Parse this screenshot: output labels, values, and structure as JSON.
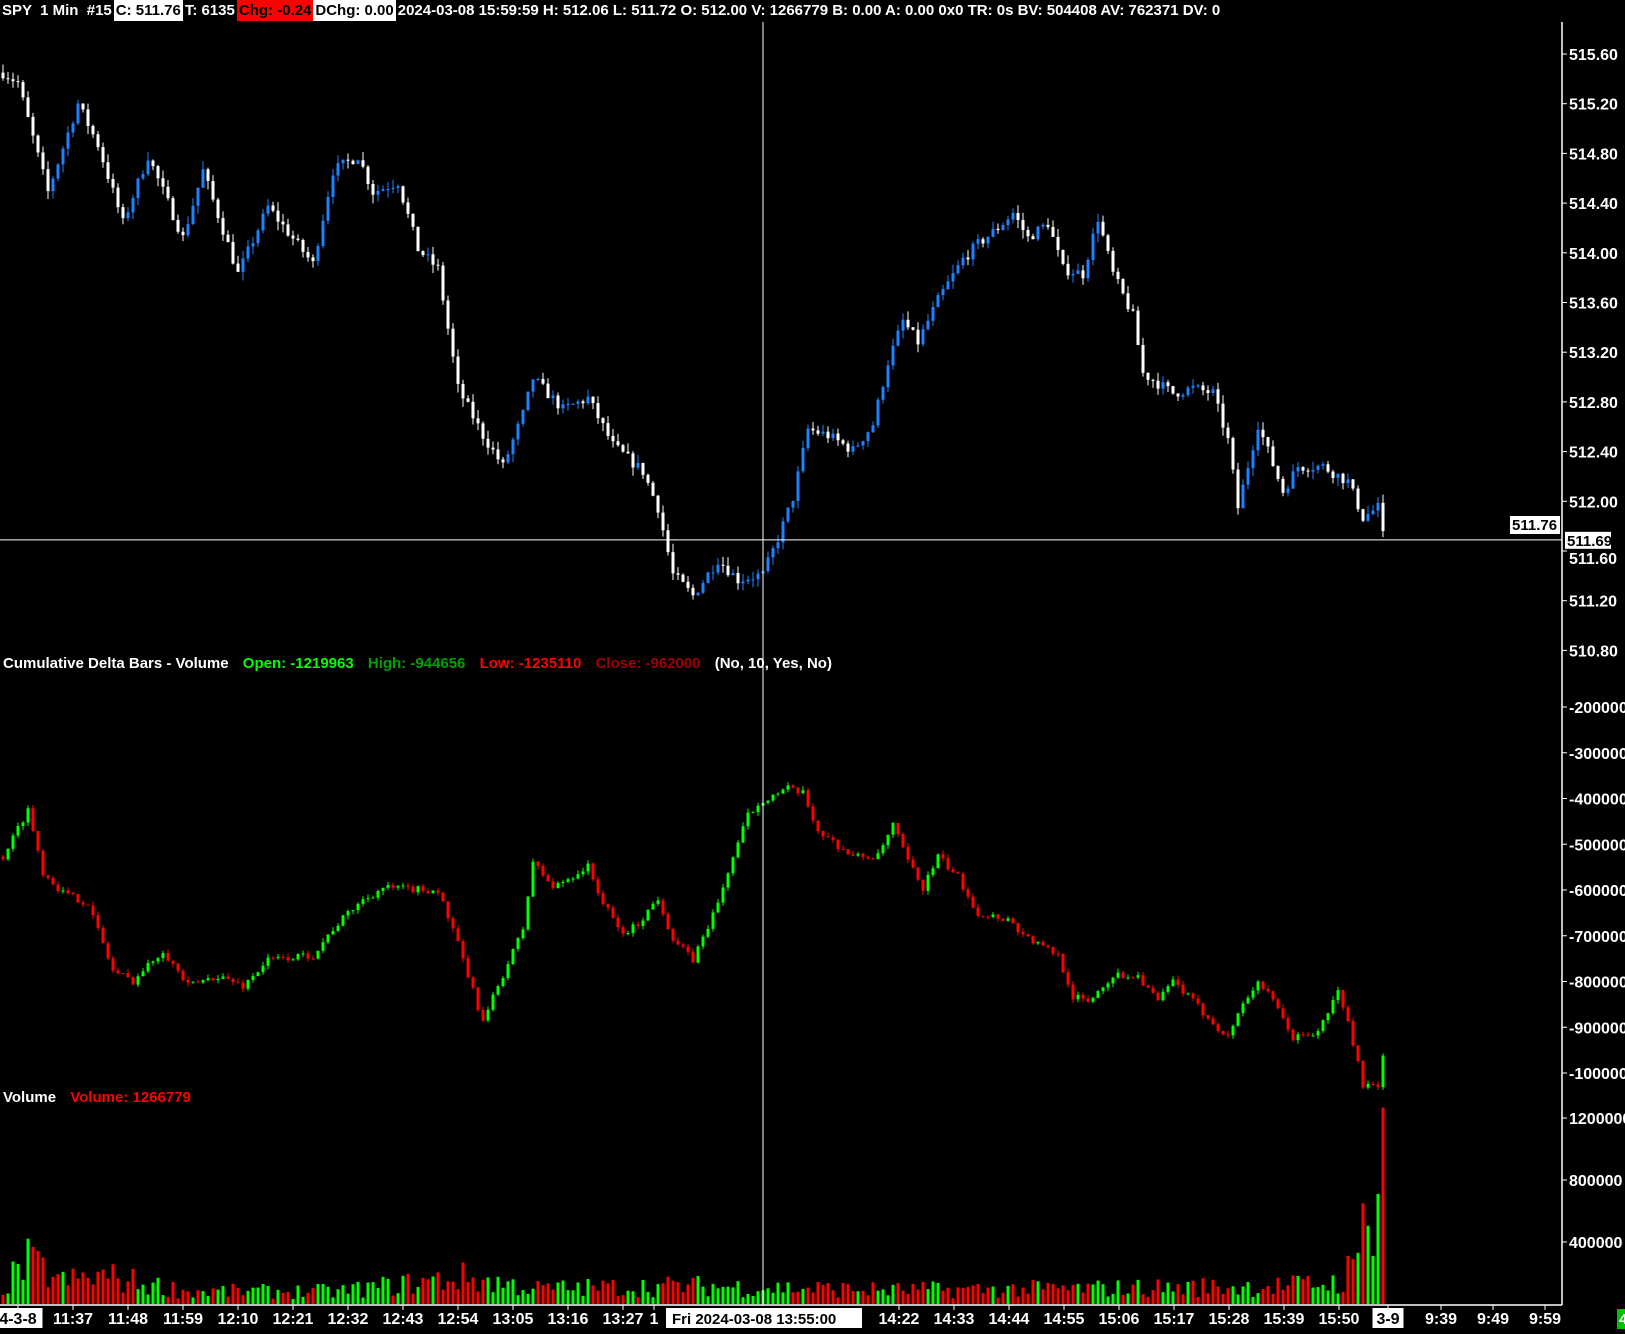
{
  "header": {
    "symbol_info": "SPY  1 Min  #15",
    "close": "C: 511.76",
    "trades": "T: 6135",
    "change": "Chg: -0.24",
    "daily_change": "DChg: 0.00",
    "details": "2024-03-08 15:59:59 H: 512.06 L: 511.72 O: 512.00 V: 1266779 B: 0.00 A: 0.00 0x0 TR: 0s BV: 504408 AV: 762371 DV: 0"
  },
  "study_delta": {
    "title": "Cumulative Delta Bars - Volume",
    "open": "Open: -1219963",
    "high": "High: -944656",
    "low": "Low: -1235110",
    "close": "Close: -962000",
    "params": "(No, 10, Yes, No)"
  },
  "study_volume": {
    "title": "Volume",
    "value": "Volume: 1266779"
  },
  "crosshair": {
    "time": "13:55",
    "price": 511.69,
    "time_label": "Fri 2024-03-08  13:55:00",
    "price_label": "511.69"
  },
  "last_price_label": "511.76",
  "x_axis": {
    "labels": [
      "4-3-8",
      "11:37",
      "11:48",
      "11:59",
      "12:10",
      "12:21",
      "12:32",
      "12:43",
      "12:54",
      "13:05",
      "13:16",
      "13:27",
      "1",
      "14:22",
      "14:33",
      "14:44",
      "14:55",
      "15:06",
      "15:17",
      "15:28",
      "15:39",
      "15:50",
      "3-9",
      "9:39",
      "9:49",
      "9:59"
    ],
    "corner_badge": "4"
  },
  "colors": {
    "background": "#000000",
    "price_up": "#1e82ff",
    "price_down": "#ffffff",
    "delta_up": "#00ff00",
    "delta_down": "#ff0000",
    "open_text": "#00ff00",
    "high_text": "#00a000",
    "low_text": "#ff0000",
    "close_text": "#a00000"
  },
  "chart_data": [
    {
      "type": "candlestick",
      "title": "SPY 1 Min",
      "ylim": [
        510.8,
        515.8
      ],
      "yticks": [
        "515.60",
        "515.20",
        "514.80",
        "514.40",
        "514.00",
        "513.60",
        "513.20",
        "512.80",
        "512.40",
        "512.00",
        "511.60",
        "511.20",
        "510.80"
      ],
      "close_path": [
        [
          "11:23",
          515.45
        ],
        [
          "11:26",
          515.37
        ],
        [
          "11:30",
          514.78
        ],
        [
          "11:32",
          514.49
        ],
        [
          "11:38",
          515.2
        ],
        [
          "11:42",
          514.87
        ],
        [
          "11:47",
          514.24
        ],
        [
          "11:52",
          514.78
        ],
        [
          "11:59",
          514.12
        ],
        [
          "12:03",
          514.66
        ],
        [
          "12:10",
          513.83
        ],
        [
          "12:16",
          514.37
        ],
        [
          "12:25",
          513.91
        ],
        [
          "12:29",
          514.66
        ],
        [
          "12:34",
          514.78
        ],
        [
          "12:37",
          514.49
        ],
        [
          "12:42",
          514.57
        ],
        [
          "12:46",
          514.03
        ],
        [
          "12:50",
          513.87
        ],
        [
          "12:54",
          512.91
        ],
        [
          "12:59",
          512.53
        ],
        [
          "13:03",
          512.28
        ],
        [
          "13:07",
          512.7
        ],
        [
          "13:09",
          512.99
        ],
        [
          "13:15",
          512.74
        ],
        [
          "13:20",
          512.83
        ],
        [
          "13:25",
          512.45
        ],
        [
          "13:31",
          512.24
        ],
        [
          "13:34",
          511.95
        ],
        [
          "13:37",
          511.41
        ],
        [
          "13:41",
          511.24
        ],
        [
          "13:46",
          511.53
        ],
        [
          "13:50",
          511.37
        ],
        [
          "13:55",
          511.41
        ],
        [
          "13:58",
          511.7
        ],
        [
          "14:01",
          512.03
        ],
        [
          "14:04",
          512.58
        ],
        [
          "14:08",
          512.53
        ],
        [
          "14:13",
          512.41
        ],
        [
          "14:17",
          512.62
        ],
        [
          "14:20",
          513.12
        ],
        [
          "14:23",
          513.45
        ],
        [
          "14:26",
          513.28
        ],
        [
          "14:30",
          513.62
        ],
        [
          "14:35",
          513.95
        ],
        [
          "14:38",
          514.07
        ],
        [
          "14:42",
          514.2
        ],
        [
          "14:45",
          514.32
        ],
        [
          "14:48",
          514.12
        ],
        [
          "14:52",
          514.24
        ],
        [
          "14:55",
          513.87
        ],
        [
          "14:59",
          513.83
        ],
        [
          "15:02",
          514.28
        ],
        [
          "15:05",
          513.83
        ],
        [
          "15:09",
          513.49
        ],
        [
          "15:11",
          513.03
        ],
        [
          "15:17",
          512.87
        ],
        [
          "15:21",
          512.91
        ],
        [
          "15:25",
          512.87
        ],
        [
          "15:28",
          512.49
        ],
        [
          "15:30",
          511.95
        ],
        [
          "15:34",
          512.62
        ],
        [
          "15:39",
          512.08
        ],
        [
          "15:42",
          512.28
        ],
        [
          "15:47",
          512.28
        ],
        [
          "15:52",
          512.16
        ],
        [
          "15:55",
          511.87
        ],
        [
          "15:58",
          511.95
        ],
        [
          "15:59",
          511.76
        ]
      ]
    },
    {
      "type": "candlestick",
      "title": "Cumulative Delta Bars - Volume",
      "ylim": [
        -1100000,
        -150000
      ],
      "yticks": [
        "-200000",
        "-300000",
        "-400000",
        "-500000",
        "-600000",
        "-700000",
        "-800000",
        "-900000",
        "-1000000"
      ],
      "close_path": [
        [
          "11:23",
          -527000
        ],
        [
          "11:28",
          -424000
        ],
        [
          "11:31",
          -560000
        ],
        [
          "11:35",
          -606000
        ],
        [
          "11:40",
          -629000
        ],
        [
          "11:45",
          -776000
        ],
        [
          "11:49",
          -799000
        ],
        [
          "11:55",
          -731000
        ],
        [
          "12:00",
          -810000
        ],
        [
          "12:06",
          -787000
        ],
        [
          "12:11",
          -810000
        ],
        [
          "12:16",
          -753000
        ],
        [
          "12:25",
          -742000
        ],
        [
          "12:29",
          -685000
        ],
        [
          "12:34",
          -629000
        ],
        [
          "12:39",
          -595000
        ],
        [
          "12:50",
          -601000
        ],
        [
          "12:54",
          -719000
        ],
        [
          "12:59",
          -889000
        ],
        [
          "13:02",
          -810000
        ],
        [
          "13:07",
          -685000
        ],
        [
          "13:09",
          -538000
        ],
        [
          "13:13",
          -595000
        ],
        [
          "13:20",
          -549000
        ],
        [
          "13:23",
          -629000
        ],
        [
          "13:27",
          -697000
        ],
        [
          "13:30",
          -674000
        ],
        [
          "13:34",
          -617000
        ],
        [
          "13:37",
          -708000
        ],
        [
          "13:41",
          -753000
        ],
        [
          "13:46",
          -629000
        ],
        [
          "13:48",
          -560000
        ],
        [
          "13:52",
          -436000
        ],
        [
          "13:55",
          -402000
        ],
        [
          "14:00",
          -379000
        ],
        [
          "14:03",
          -390000
        ],
        [
          "14:06",
          -470000
        ],
        [
          "14:13",
          -527000
        ],
        [
          "14:18",
          -527000
        ],
        [
          "14:21",
          -458000
        ],
        [
          "14:24",
          -538000
        ],
        [
          "14:27",
          -595000
        ],
        [
          "14:30",
          -527000
        ],
        [
          "14:34",
          -572000
        ],
        [
          "14:38",
          -651000
        ],
        [
          "14:44",
          -663000
        ],
        [
          "14:47",
          -697000
        ],
        [
          "14:50",
          -719000
        ],
        [
          "14:54",
          -742000
        ],
        [
          "14:57",
          -833000
        ],
        [
          "15:00",
          -844000
        ],
        [
          "15:05",
          -787000
        ],
        [
          "15:10",
          -787000
        ],
        [
          "15:14",
          -844000
        ],
        [
          "15:17",
          -799000
        ],
        [
          "15:23",
          -867000
        ],
        [
          "15:28",
          -923000
        ],
        [
          "15:30",
          -867000
        ],
        [
          "15:34",
          -799000
        ],
        [
          "15:37",
          -844000
        ],
        [
          "15:41",
          -923000
        ],
        [
          "15:46",
          -912000
        ],
        [
          "15:50",
          -821000
        ],
        [
          "15:52",
          -889000
        ],
        [
          "15:55",
          -1025000
        ],
        [
          "15:58",
          -1035000
        ],
        [
          "15:59",
          -962000
        ]
      ]
    },
    {
      "type": "bar",
      "title": "Volume",
      "ylim": [
        0,
        1400000
      ],
      "yticks": [
        "1200000",
        "800000",
        "400000"
      ],
      "level_path": [
        [
          "11:23",
          120000
        ],
        [
          "11:28",
          300000
        ],
        [
          "11:35",
          160000
        ],
        [
          "11:43",
          200000
        ],
        [
          "12:00",
          90000
        ],
        [
          "12:30",
          90000
        ],
        [
          "12:55",
          190000
        ],
        [
          "13:10",
          110000
        ],
        [
          "13:40",
          130000
        ],
        [
          "14:20",
          100000
        ],
        [
          "15:00",
          110000
        ],
        [
          "15:40",
          130000
        ],
        [
          "15:51",
          160000
        ]
      ],
      "final_bars": [
        [
          "15:52",
          310000,
          "down"
        ],
        [
          "15:53",
          290000,
          "down"
        ],
        [
          "15:54",
          330000,
          "up"
        ],
        [
          "15:55",
          650000,
          "down"
        ],
        [
          "15:56",
          505000,
          "up"
        ],
        [
          "15:57",
          310000,
          "up"
        ],
        [
          "15:58",
          710000,
          "up"
        ],
        [
          "15:59",
          1266779,
          "down"
        ]
      ]
    }
  ]
}
